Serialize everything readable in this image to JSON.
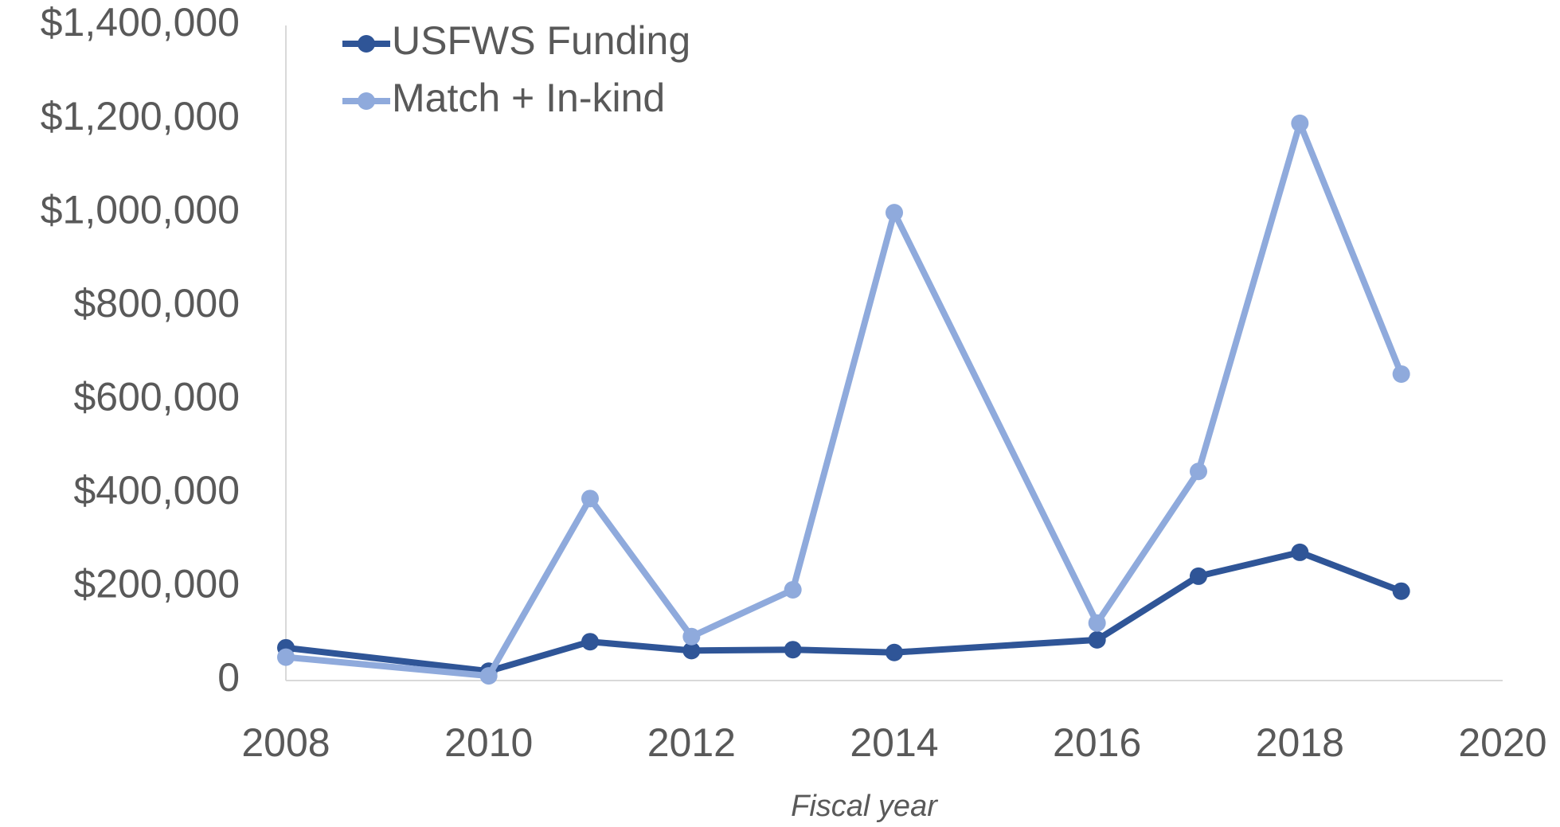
{
  "chart_data": {
    "type": "line",
    "x_label": "Fiscal year",
    "x": [
      2008,
      2010,
      2011,
      2012,
      2013,
      2014,
      2016,
      2017,
      2018,
      2019
    ],
    "series": [
      {
        "name": "USFWS Funding",
        "color": "#2f5597",
        "values": [
          70000,
          20000,
          83000,
          64000,
          66000,
          60000,
          87000,
          223000,
          274000,
          191000
        ]
      },
      {
        "name": "Match + In-kind",
        "color": "#8faadc",
        "values": [
          50000,
          10000,
          389000,
          94000,
          194000,
          1000000,
          123000,
          447000,
          1191000,
          655000
        ]
      }
    ],
    "xlim": [
      2008,
      2020
    ],
    "xticks": [
      2008,
      2010,
      2012,
      2014,
      2016,
      2018,
      2020
    ],
    "ylim": [
      0,
      1400000
    ],
    "yticks": [
      0,
      {
        "value": 200000,
        "label": "$200,000"
      },
      {
        "value": 400000,
        "label": "$400,000"
      },
      {
        "value": 600000,
        "label": "$600,000"
      },
      {
        "value": 800000,
        "label": "$800,000"
      },
      {
        "value": 1000000,
        "label": "$1,000,000"
      },
      {
        "value": 1200000,
        "label": "$1,200,000"
      },
      {
        "value": 1400000,
        "label": "$1,400,000"
      }
    ],
    "grid": false,
    "legend": "top-left"
  }
}
